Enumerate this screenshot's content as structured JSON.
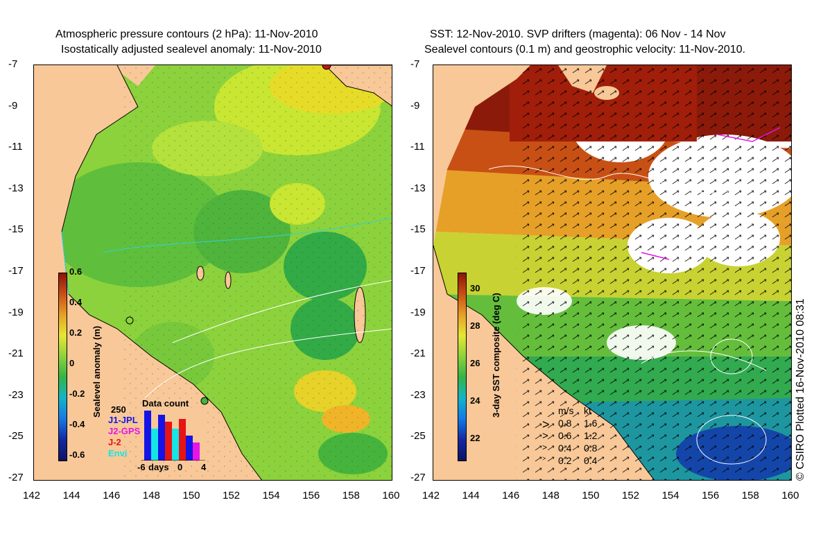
{
  "left_title": {
    "line1": "Atmospheric pressure contours (2 hPa): 11-Nov-2010",
    "line2": "Isostatically adjusted sealevel anomaly: 11-Nov-2010"
  },
  "right_title": {
    "line1": "SST: 12-Nov-2010. SVP drifters (magenta): 06 Nov - 14 Nov",
    "line2": "Sealevel contours (0.1 m) and geostrophic velocity: 11-Nov-2010."
  },
  "lat_ticks": [
    "-7",
    "-9",
    "-11",
    "-13",
    "-15",
    "-17",
    "-19",
    "-21",
    "-23",
    "-25",
    "-27"
  ],
  "lon_ticks": [
    "142",
    "144",
    "146",
    "148",
    "150",
    "152",
    "154",
    "156",
    "158",
    "160"
  ],
  "left_colorbar": {
    "label": "Sealevel anomaly (m)",
    "ticks": [
      "0.6",
      "0.4",
      "0.2",
      "0",
      "-0.2",
      "-0.4",
      "-0.6"
    ]
  },
  "right_colorbar": {
    "label": "3-day SST composite (deg C)",
    "ticks": [
      "30",
      "28",
      "26",
      "24",
      "22"
    ]
  },
  "data_count": {
    "title": "Data count",
    "max": "250",
    "sources": [
      {
        "name": "J1-JPL",
        "color": "#1414e6"
      },
      {
        "name": "J2-GPS",
        "color": "#e614e6"
      },
      {
        "name": "J-2",
        "color": "#e61414"
      },
      {
        "name": "Envi",
        "color": "#14e6e6"
      }
    ],
    "axis": {
      "left": "-6",
      "label": "days",
      "mid": "0",
      "right": "4"
    }
  },
  "velocity_legend": {
    "header_ms": "m/s",
    "header_kt": "kt",
    "rows": [
      {
        "ms": "0.8",
        "kt": "1.6"
      },
      {
        "ms": "0.6",
        "kt": "1.2"
      },
      {
        "ms": "0.4",
        "kt": "0.8"
      },
      {
        "ms": "0.2",
        "kt": "0.4"
      }
    ]
  },
  "credit": "© CSIRO Plotted 16-Nov-2010 08:31",
  "colors": {
    "land": "#f8c898",
    "sst_hot": "#8c1a0a",
    "sla_base": "#8cd23c",
    "drifter": "#e614e6",
    "coast_contour": "#30d2d2"
  }
}
